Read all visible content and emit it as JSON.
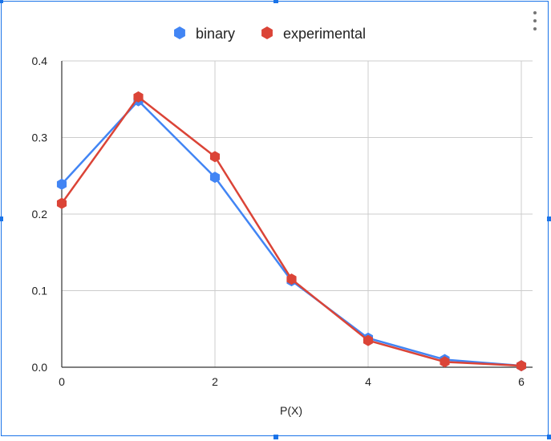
{
  "chart_data": {
    "type": "line",
    "title": "",
    "xlabel": "P(X)",
    "ylabel": "",
    "x": [
      0,
      1,
      2,
      3,
      4,
      5,
      6
    ],
    "xlim": [
      0,
      6
    ],
    "ylim": [
      0,
      0.4
    ],
    "xticks": [
      "0",
      "2",
      "4",
      "6"
    ],
    "yticks": [
      "0.0",
      "0.1",
      "0.2",
      "0.3",
      "0.4"
    ],
    "grid": true,
    "legend_position": "top",
    "series": [
      {
        "name": "binary",
        "color": "#4285f4",
        "marker": "hexagon",
        "values": [
          0.239,
          0.348,
          0.248,
          0.113,
          0.038,
          0.01,
          0.002
        ]
      },
      {
        "name": "experimental",
        "color": "#db4437",
        "marker": "hexagon",
        "values": [
          0.214,
          0.353,
          0.275,
          0.115,
          0.035,
          0.007,
          0.002
        ]
      }
    ]
  },
  "ui": {
    "menu_icon": "more-vert-icon"
  }
}
